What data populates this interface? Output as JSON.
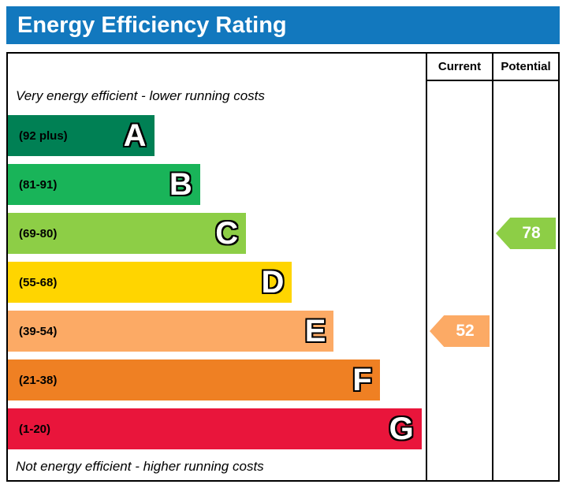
{
  "header": {
    "title": "Energy Efficiency Rating"
  },
  "columns": {
    "current": "Current",
    "potential": "Potential"
  },
  "notes": {
    "top": "Very energy efficient - lower running costs",
    "bottom": "Not energy efficient - higher running costs"
  },
  "colors": {
    "title_bar": "#1278be"
  },
  "chart_data": {
    "type": "bar",
    "title": "Energy Efficiency Rating",
    "bands": [
      {
        "letter": "A",
        "range": "(92 plus)",
        "min": 92,
        "max": 100,
        "color": "#008054",
        "width": "35%"
      },
      {
        "letter": "B",
        "range": "(81-91)",
        "min": 81,
        "max": 91,
        "color": "#19b459",
        "width": "46%"
      },
      {
        "letter": "C",
        "range": "(69-80)",
        "min": 69,
        "max": 80,
        "color": "#8dce46",
        "width": "57%"
      },
      {
        "letter": "D",
        "range": "(55-68)",
        "min": 55,
        "max": 68,
        "color": "#ffd500",
        "width": "68%"
      },
      {
        "letter": "E",
        "range": "(39-54)",
        "min": 39,
        "max": 54,
        "color": "#fcaa65",
        "width": "78%"
      },
      {
        "letter": "F",
        "range": "(21-38)",
        "min": 21,
        "max": 38,
        "color": "#ef8023",
        "width": "89%"
      },
      {
        "letter": "G",
        "range": "(1-20)",
        "min": 1,
        "max": 20,
        "color": "#e9153b",
        "width": "99%"
      }
    ],
    "current": {
      "value": 52,
      "band": "E",
      "color": "#fcaa65"
    },
    "potential": {
      "value": 78,
      "band": "C",
      "color": "#8dce46"
    }
  }
}
